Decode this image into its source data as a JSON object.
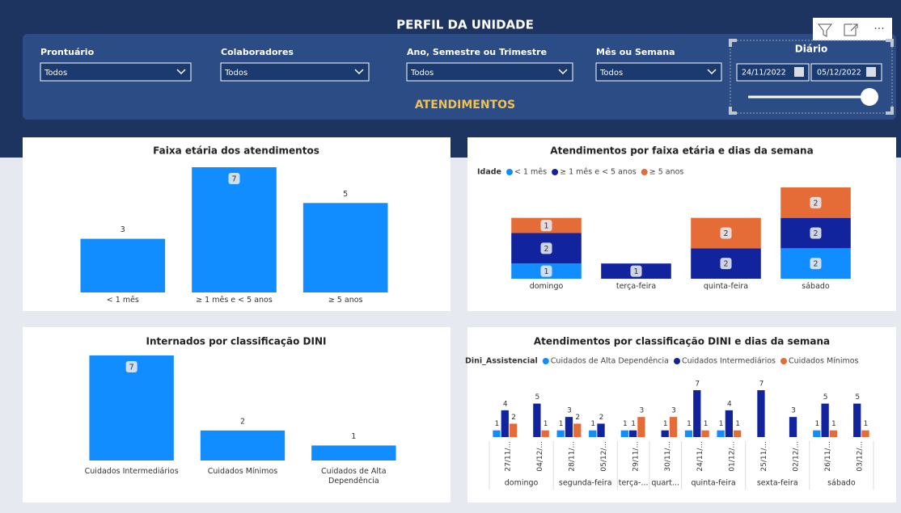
{
  "header": {
    "title": "PERFIL DA UNIDADE",
    "section": "ATENDIMENTOS",
    "slicers": [
      {
        "label": "Prontuário",
        "value": "Todos"
      },
      {
        "label": "Colaboradores",
        "value": "Todos"
      },
      {
        "label": "Ano, Semestre ou Trimestre",
        "value": "Todos"
      },
      {
        "label": "Mês ou Semana",
        "value": "Todos"
      }
    ],
    "date_slicer": {
      "label": "Diário",
      "start": "24/11/2022",
      "end": "05/12/2022"
    }
  },
  "chart_data": [
    {
      "type": "bar",
      "title": "Faixa etária dos atendimentos",
      "categories": [
        "< 1 mês",
        "≥ 1 mês e < 5 anos",
        "≥ 5 anos"
      ],
      "values": [
        3,
        7,
        5
      ],
      "color": "#118dff"
    },
    {
      "type": "stackedbar",
      "title": "Atendimentos por faixa etária e dias da semana",
      "legend_title": "Idade",
      "categories": [
        "domingo",
        "terça-feira",
        "quinta-feira",
        "sábado"
      ],
      "series": [
        {
          "name": "< 1 mês",
          "color": "#118dff",
          "values": [
            1,
            null,
            null,
            2
          ]
        },
        {
          "name": "≥ 1 mês e < 5 anos",
          "color": "#12239e",
          "values": [
            2,
            1,
            2,
            2
          ]
        },
        {
          "name": "≥ 5 anos",
          "color": "#e66c37",
          "values": [
            1,
            null,
            2,
            2
          ]
        }
      ]
    },
    {
      "type": "bar",
      "title": "Internados por classificação DINI",
      "categories": [
        "Cuidados Intermediários",
        "Cuidados Mínimos",
        "Cuidados de Alta Dependência"
      ],
      "values": [
        7,
        2,
        1
      ],
      "color": "#118dff"
    },
    {
      "type": "groupedbar",
      "title": "Atendimentos por classificação DINI e dias da semana",
      "legend_title": "Dini_Assistencial",
      "groups": [
        {
          "name": "domingo",
          "categories": [
            "27/11/...",
            "04/12/..."
          ]
        },
        {
          "name": "segunda-feira",
          "categories": [
            "28/11/...",
            "05/12/..."
          ]
        },
        {
          "name": "terça-...",
          "categories": [
            "29/11/..."
          ]
        },
        {
          "name": "quart...",
          "categories": [
            "30/11/..."
          ]
        },
        {
          "name": "quinta-feira",
          "categories": [
            "24/11/...",
            "01/12/..."
          ]
        },
        {
          "name": "sexta-feira",
          "categories": [
            "25/11/...",
            "02/12/..."
          ]
        },
        {
          "name": "sábado",
          "categories": [
            "26/11/...",
            "03/12/..."
          ]
        }
      ],
      "series": [
        {
          "name": "Cuidados de Alta Dependência",
          "color": "#118dff",
          "values": [
            1,
            null,
            1,
            1,
            1,
            null,
            1,
            1,
            null,
            null,
            1,
            null
          ]
        },
        {
          "name": "Cuidados Intermediários",
          "color": "#12239e",
          "values": [
            4,
            5,
            3,
            2,
            1,
            1,
            7,
            4,
            7,
            3,
            5,
            5
          ]
        },
        {
          "name": "Cuidados Mínimos",
          "color": "#e66c37",
          "values": [
            2,
            1,
            2,
            null,
            3,
            3,
            1,
            1,
            null,
            null,
            1,
            1
          ]
        }
      ]
    }
  ]
}
